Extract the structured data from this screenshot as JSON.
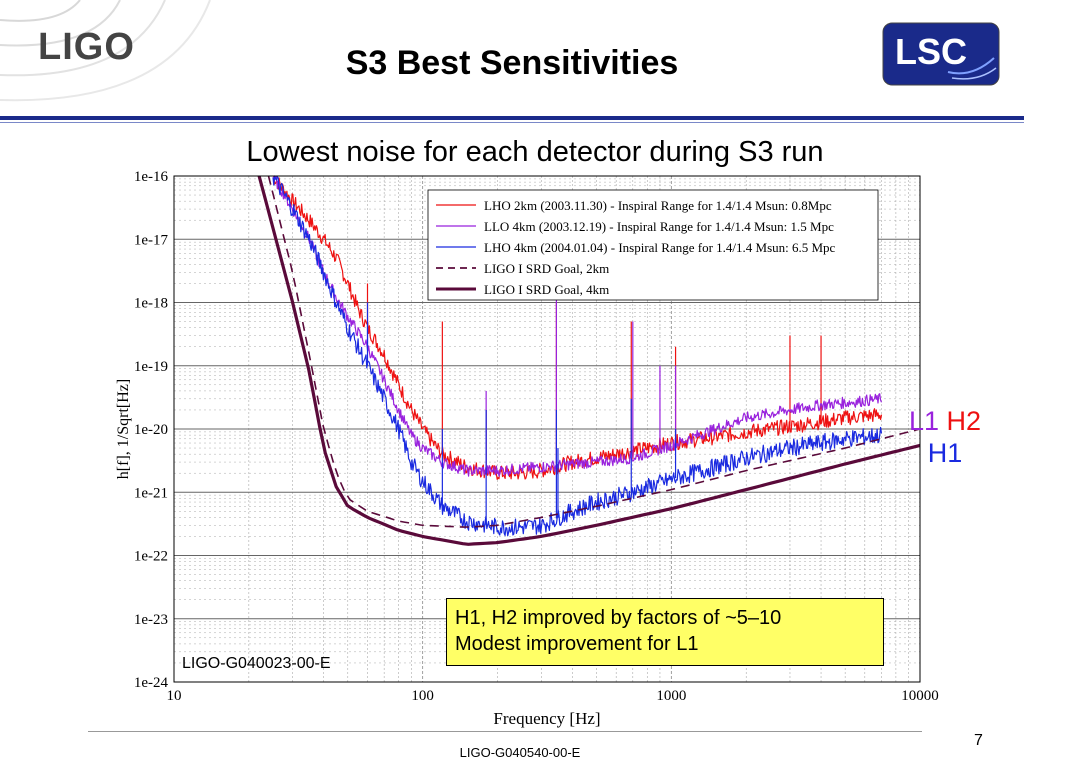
{
  "header": {
    "left_logo_text": "LIGO",
    "title": "S3 Best Sensitivities",
    "right_logo_text": "LSC"
  },
  "subtitle": "Lowest noise for each detector during S3 run",
  "colors": {
    "title_bar": "#1a2a8a",
    "h2_red": "#ee1111",
    "l1_purple": "#9922dd",
    "h1_blue": "#1a2ae0",
    "srd_goal": "#5a0a3a",
    "note_bg": "#ffff66"
  },
  "side_labels": {
    "l1": "L1",
    "h2": "H2",
    "h1": "H1"
  },
  "note": {
    "line1": "H1, H2 improved by factors of ~5–10",
    "line2": "Modest improvement for L1"
  },
  "chart_doc_id": "LIGO-G040023-00-E",
  "footer": {
    "doc_id": "LIGO-G040540-00-E",
    "page_number": "7"
  },
  "chart_data": {
    "type": "line",
    "xlabel": "Frequency [Hz]",
    "ylabel": "h[f], 1/Sqrt[Hz]",
    "x_scale": "log",
    "y_scale": "log",
    "xlim": [
      10,
      10000
    ],
    "ylim": [
      1e-24,
      1e-16
    ],
    "x_tick_labels": [
      "10",
      "100",
      "1000",
      "10000"
    ],
    "y_tick_labels": [
      "1e-16",
      "1e-17",
      "1e-18",
      "1e-19",
      "1e-20",
      "1e-21",
      "1e-22",
      "1e-23",
      "1e-24"
    ],
    "grid": true,
    "legend_position": "top-right",
    "series": [
      {
        "name": "LHO 2km (2003.11.30) - Inspiral Range for 1.4/1.4 Msun: 0.8Mpc",
        "color": "#ee1111",
        "style": "solid",
        "width": 1.2,
        "jitter": 0.12,
        "points": [
          [
            25,
            1e-16
          ],
          [
            30,
            4e-17
          ],
          [
            35,
            2e-17
          ],
          [
            40,
            1e-17
          ],
          [
            45,
            5e-18
          ],
          [
            50,
            2e-18
          ],
          [
            55,
            8e-19
          ],
          [
            60,
            4e-19
          ],
          [
            70,
            1.5e-19
          ],
          [
            80,
            5e-20
          ],
          [
            90,
            2e-20
          ],
          [
            100,
            1e-20
          ],
          [
            110,
            6e-21
          ],
          [
            120,
            4e-21
          ],
          [
            150,
            2.5e-21
          ],
          [
            200,
            2e-21
          ],
          [
            250,
            2e-21
          ],
          [
            300,
            2.2e-21
          ],
          [
            400,
            3e-21
          ],
          [
            500,
            3.5e-21
          ],
          [
            700,
            4.5e-21
          ],
          [
            1000,
            6e-21
          ],
          [
            1500,
            7.5e-21
          ],
          [
            2000,
            9e-21
          ],
          [
            3000,
            1.1e-20
          ],
          [
            4000,
            1.3e-20
          ],
          [
            5000,
            1.5e-20
          ],
          [
            6000,
            1.6e-20
          ],
          [
            7000,
            1.7e-20
          ]
        ],
        "spikes": [
          [
            60,
            2e-18
          ],
          [
            120,
            5e-19
          ],
          [
            180,
            2e-20
          ],
          [
            345,
            1e-18
          ],
          [
            690,
            5e-19
          ],
          [
            1040,
            2e-19
          ],
          [
            3000,
            3e-19
          ],
          [
            4000,
            3e-19
          ]
        ]
      },
      {
        "name": "LLO 4km (2003.12.19) - Inspiral Range for 1.4/1.4 Msun: 1.5 Mpc",
        "color": "#9922dd",
        "style": "solid",
        "width": 1.2,
        "jitter": 0.09,
        "points": [
          [
            25,
            1e-16
          ],
          [
            30,
            3e-17
          ],
          [
            35,
            1e-17
          ],
          [
            40,
            3e-18
          ],
          [
            45,
            1.2e-18
          ],
          [
            50,
            6e-19
          ],
          [
            60,
            2e-19
          ],
          [
            70,
            6e-20
          ],
          [
            80,
            2e-20
          ],
          [
            90,
            8e-21
          ],
          [
            100,
            5e-21
          ],
          [
            120,
            3e-21
          ],
          [
            150,
            2.2e-21
          ],
          [
            200,
            2.2e-21
          ],
          [
            300,
            2.5e-21
          ],
          [
            400,
            2.8e-21
          ],
          [
            500,
            3e-21
          ],
          [
            700,
            3.5e-21
          ],
          [
            1000,
            5.5e-21
          ],
          [
            1500,
            1e-20
          ],
          [
            2000,
            1.5e-20
          ],
          [
            3000,
            2e-20
          ],
          [
            4000,
            2.4e-20
          ],
          [
            5000,
            2.6e-20
          ],
          [
            6000,
            2.8e-20
          ],
          [
            7000,
            3e-20
          ]
        ],
        "spikes": [
          [
            60,
            4e-19
          ],
          [
            180,
            4e-20
          ],
          [
            345,
            2e-18
          ],
          [
            700,
            5e-19
          ],
          [
            900,
            1e-19
          ],
          [
            1040,
            1e-19
          ]
        ]
      },
      {
        "name": "LHO 4km (2004.01.04) - Inspiral Range for 1.4/1.4 Msun: 6.5 Mpc",
        "color": "#1a2ae0",
        "style": "solid",
        "width": 1.2,
        "jitter": 0.14,
        "points": [
          [
            25,
            1e-16
          ],
          [
            30,
            3e-17
          ],
          [
            35,
            1e-17
          ],
          [
            40,
            3e-18
          ],
          [
            45,
            1e-18
          ],
          [
            50,
            4e-19
          ],
          [
            60,
            1e-19
          ],
          [
            70,
            3e-20
          ],
          [
            80,
            1e-20
          ],
          [
            90,
            3e-21
          ],
          [
            100,
            1.5e-21
          ],
          [
            120,
            6e-22
          ],
          [
            150,
            3.5e-22
          ],
          [
            200,
            2.8e-22
          ],
          [
            250,
            2.8e-22
          ],
          [
            300,
            3e-22
          ],
          [
            400,
            5e-22
          ],
          [
            500,
            7e-22
          ],
          [
            700,
            1e-21
          ],
          [
            1000,
            1.6e-21
          ],
          [
            1500,
            2.5e-21
          ],
          [
            2000,
            3.5e-21
          ],
          [
            3000,
            5e-21
          ],
          [
            4000,
            6e-21
          ],
          [
            5000,
            7e-21
          ],
          [
            6000,
            7.5e-21
          ],
          [
            7000,
            8e-21
          ]
        ],
        "spikes": [
          [
            60,
            1e-18
          ],
          [
            120,
            1e-20
          ],
          [
            180,
            2e-20
          ],
          [
            345,
            2e-20
          ],
          [
            350,
            5e-21
          ],
          [
            690,
            3e-20
          ],
          [
            1040,
            1e-20
          ]
        ]
      },
      {
        "name": "LIGO I SRD Goal, 2km",
        "color": "#5a0a3a",
        "style": "dashed",
        "width": 1.6,
        "jitter": 0,
        "points": [
          [
            24,
            1e-16
          ],
          [
            30,
            3e-18
          ],
          [
            35,
            1.5e-19
          ],
          [
            40,
            1e-20
          ],
          [
            45,
            2e-21
          ],
          [
            50,
            8e-22
          ],
          [
            60,
            5e-22
          ],
          [
            80,
            3.5e-22
          ],
          [
            100,
            3e-22
          ],
          [
            150,
            2.8e-22
          ],
          [
            200,
            3e-22
          ],
          [
            300,
            4e-22
          ],
          [
            500,
            6e-22
          ],
          [
            1000,
            1.1e-21
          ],
          [
            2000,
            2.2e-21
          ],
          [
            5000,
            5e-21
          ],
          [
            10000,
            1e-20
          ]
        ],
        "spikes": []
      },
      {
        "name": "LIGO I SRD Goal, 4km",
        "color": "#5a0a3a",
        "style": "solid",
        "width": 3.2,
        "jitter": 0,
        "points": [
          [
            22,
            1e-16
          ],
          [
            30,
            1e-18
          ],
          [
            35,
            8e-20
          ],
          [
            40,
            5e-21
          ],
          [
            45,
            1.2e-21
          ],
          [
            50,
            6e-22
          ],
          [
            60,
            4e-22
          ],
          [
            80,
            2.5e-22
          ],
          [
            100,
            2e-22
          ],
          [
            150,
            1.5e-22
          ],
          [
            200,
            1.6e-22
          ],
          [
            300,
            2e-22
          ],
          [
            500,
            3e-22
          ],
          [
            1000,
            5.5e-22
          ],
          [
            2000,
            1.1e-21
          ],
          [
            5000,
            2.8e-21
          ],
          [
            10000,
            5.5e-21
          ]
        ],
        "spikes": []
      }
    ]
  }
}
